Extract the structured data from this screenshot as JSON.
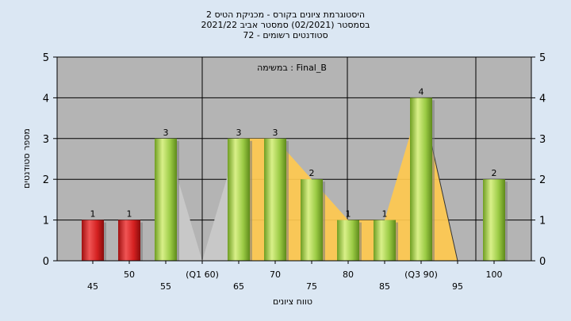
{
  "chart_data": {
    "type": "bar",
    "title_lines": [
      "היסטוגרמת ציונים בקורס - מכניקת הטיס 2",
      "בסמסטר  (02/2021)  סמסטר אביב 2021/22",
      "סטודנטים רשומים - 72"
    ],
    "task_label": "במשימה : Final_B",
    "xlabel": "טווח ציונים",
    "ylabel": "מספר סטודנטים",
    "ylim": [
      0,
      5
    ],
    "yticks": [
      0,
      1,
      2,
      3,
      4,
      5
    ],
    "grid": true,
    "categories": [
      "45",
      "50",
      "55",
      "(Q1 60)",
      "65",
      "70",
      "75",
      "80",
      "85",
      "(Q3 90)",
      "95",
      "100"
    ],
    "values": [
      1,
      1,
      3,
      0,
      3,
      3,
      2,
      1,
      1,
      4,
      0,
      2
    ],
    "bar_labels": [
      "1",
      "1",
      "3",
      "",
      "3",
      "3",
      "2",
      "1",
      "1",
      "4",
      "",
      "2"
    ],
    "bar_colors": [
      "red",
      "red",
      "green",
      "none",
      "green",
      "green",
      "green",
      "green",
      "green",
      "green",
      "none",
      "green"
    ],
    "colors": {
      "background": "#dbe7f3",
      "plot_area": "#b4b4b4",
      "grid": "#000000",
      "bar_red": "#d42020",
      "bar_green": "#8fc23c",
      "area_gray": "#c8c8c8",
      "area_yellow": "#ffc94f"
    }
  }
}
